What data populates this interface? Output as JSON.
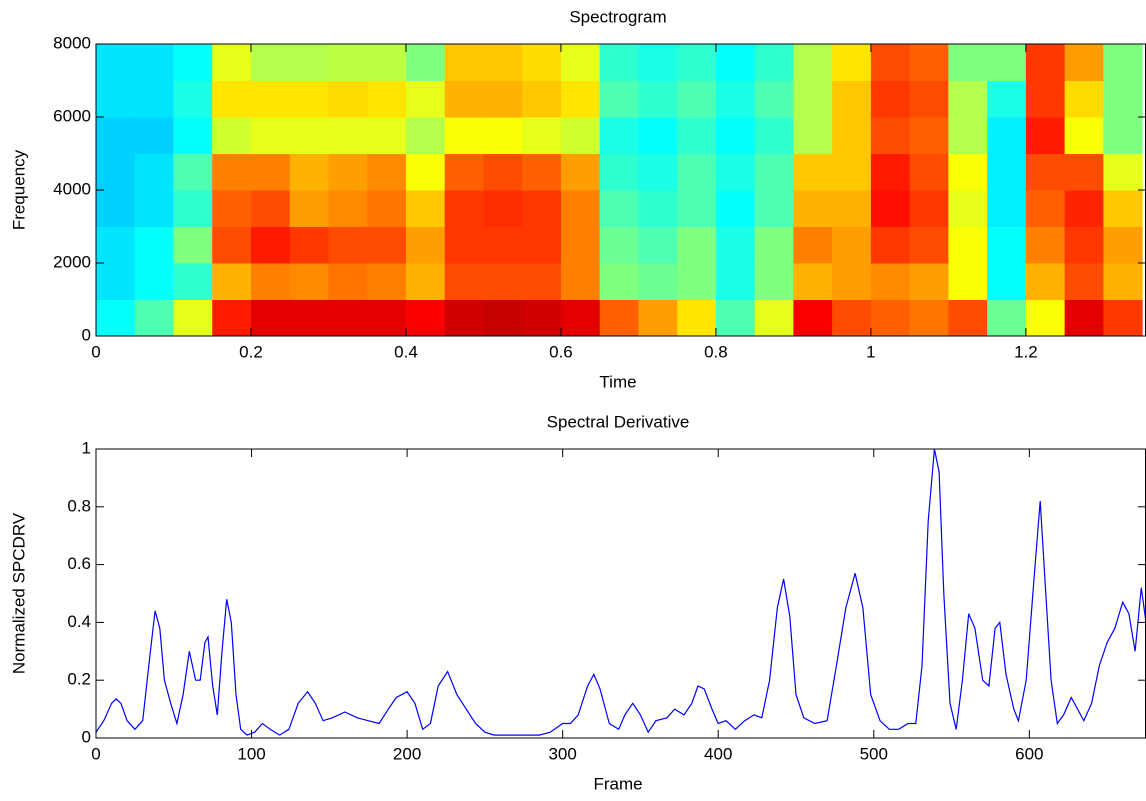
{
  "chart_data": [
    {
      "type": "heatmap",
      "title": "Spectrogram",
      "xlabel": "Time",
      "ylabel": "Frequency",
      "colormap": "jet",
      "xlim": [
        0,
        1.355
      ],
      "ylim": [
        0,
        8000
      ],
      "xticks": [
        0,
        0.2,
        0.4,
        0.6,
        0.8,
        1,
        1.2
      ],
      "yticks": [
        0,
        2000,
        4000,
        6000,
        8000
      ],
      "xbins": [
        0,
        0.05,
        0.1,
        0.15,
        0.2,
        0.25,
        0.3,
        0.35,
        0.4,
        0.45,
        0.5,
        0.55,
        0.6,
        0.65,
        0.7,
        0.75,
        0.8,
        0.85,
        0.9,
        0.95,
        1,
        1.05,
        1.1,
        1.15,
        1.2,
        1.25,
        1.3,
        1.35
      ],
      "ybins": [
        0,
        1000,
        2000,
        3000,
        4000,
        5000,
        6000,
        7000,
        8000
      ],
      "z": [
        [
          0.38,
          0.35,
          0.35,
          0.33,
          0.33,
          0.33,
          0.35,
          0.35
        ],
        [
          0.45,
          0.38,
          0.38,
          0.35,
          0.35,
          0.33,
          0.35,
          0.35
        ],
        [
          0.6,
          0.42,
          0.5,
          0.42,
          0.45,
          0.38,
          0.4,
          0.38
        ],
        [
          0.85,
          0.7,
          0.8,
          0.78,
          0.75,
          0.58,
          0.65,
          0.6
        ],
        [
          0.9,
          0.75,
          0.85,
          0.8,
          0.75,
          0.6,
          0.65,
          0.55
        ],
        [
          0.9,
          0.74,
          0.82,
          0.72,
          0.7,
          0.6,
          0.65,
          0.55
        ],
        [
          0.9,
          0.76,
          0.8,
          0.74,
          0.72,
          0.6,
          0.66,
          0.56
        ],
        [
          0.9,
          0.75,
          0.8,
          0.76,
          0.74,
          0.6,
          0.65,
          0.56
        ],
        [
          0.88,
          0.7,
          0.72,
          0.68,
          0.62,
          0.55,
          0.6,
          0.5
        ],
        [
          0.92,
          0.8,
          0.82,
          0.82,
          0.78,
          0.62,
          0.7,
          0.68
        ],
        [
          0.93,
          0.8,
          0.82,
          0.83,
          0.8,
          0.62,
          0.7,
          0.68
        ],
        [
          0.92,
          0.8,
          0.82,
          0.82,
          0.78,
          0.6,
          0.68,
          0.66
        ],
        [
          0.9,
          0.75,
          0.75,
          0.75,
          0.72,
          0.58,
          0.65,
          0.6
        ],
        [
          0.78,
          0.5,
          0.48,
          0.45,
          0.42,
          0.4,
          0.45,
          0.42
        ],
        [
          0.72,
          0.48,
          0.45,
          0.42,
          0.4,
          0.38,
          0.42,
          0.4
        ],
        [
          0.65,
          0.5,
          0.5,
          0.45,
          0.45,
          0.42,
          0.45,
          0.42
        ],
        [
          0.45,
          0.4,
          0.4,
          0.38,
          0.4,
          0.38,
          0.4,
          0.38
        ],
        [
          0.6,
          0.5,
          0.5,
          0.45,
          0.45,
          0.42,
          0.45,
          0.42
        ],
        [
          0.88,
          0.7,
          0.75,
          0.7,
          0.68,
          0.55,
          0.55,
          0.55
        ],
        [
          0.8,
          0.72,
          0.72,
          0.7,
          0.68,
          0.68,
          0.68,
          0.65
        ],
        [
          0.78,
          0.74,
          0.82,
          0.86,
          0.85,
          0.8,
          0.82,
          0.8
        ],
        [
          0.76,
          0.72,
          0.8,
          0.82,
          0.8,
          0.78,
          0.8,
          0.78
        ],
        [
          0.8,
          0.62,
          0.62,
          0.6,
          0.62,
          0.55,
          0.55,
          0.5
        ],
        [
          0.48,
          0.38,
          0.38,
          0.36,
          0.36,
          0.36,
          0.4,
          0.5
        ],
        [
          0.62,
          0.7,
          0.75,
          0.78,
          0.8,
          0.85,
          0.82,
          0.82
        ],
        [
          0.9,
          0.8,
          0.82,
          0.84,
          0.8,
          0.62,
          0.66,
          0.72
        ],
        [
          0.82,
          0.7,
          0.72,
          0.68,
          0.6,
          0.5,
          0.5,
          0.5
        ]
      ]
    },
    {
      "type": "line",
      "title": "Spectral Derivative",
      "xlabel": "Frame",
      "ylabel": "Normalized SPCDRV",
      "xlim": [
        0,
        675
      ],
      "ylim": [
        0,
        1
      ],
      "xticks": [
        0,
        100,
        200,
        300,
        400,
        500,
        600
      ],
      "yticks": [
        0,
        0.2,
        0.4,
        0.6,
        0.8,
        1
      ],
      "x": [
        0,
        5,
        10,
        13,
        16,
        20,
        25,
        30,
        35,
        38,
        41,
        44,
        48,
        52,
        56,
        60,
        64,
        67,
        70,
        72,
        75,
        78,
        81,
        84,
        87,
        90,
        93,
        97,
        102,
        107,
        112,
        118,
        124,
        130,
        136,
        141,
        146,
        152,
        160,
        168,
        175,
        182,
        188,
        193,
        200,
        205,
        210,
        215,
        220,
        226,
        232,
        238,
        244,
        250,
        256,
        265,
        275,
        285,
        292,
        300,
        305,
        310,
        316,
        320,
        324,
        330,
        336,
        340,
        345,
        350,
        355,
        360,
        367,
        372,
        378,
        383,
        387,
        391,
        396,
        400,
        405,
        411,
        417,
        423,
        428,
        433,
        438,
        442,
        446,
        450,
        455,
        462,
        470,
        476,
        482,
        488,
        493,
        498,
        504,
        510,
        516,
        522,
        527,
        531,
        535,
        539,
        542,
        545,
        549,
        553,
        557,
        561,
        565,
        570,
        574,
        578,
        581,
        585,
        590,
        593,
        598,
        603,
        607,
        610,
        614,
        618,
        622,
        627,
        631,
        635,
        640,
        645,
        650,
        655,
        660,
        664,
        668,
        672,
        675
      ],
      "series": [
        {
          "color": "#0000ff",
          "values": [
            0.02,
            0.06,
            0.12,
            0.135,
            0.12,
            0.06,
            0.03,
            0.06,
            0.3,
            0.44,
            0.38,
            0.2,
            0.12,
            0.05,
            0.15,
            0.3,
            0.2,
            0.2,
            0.33,
            0.35,
            0.18,
            0.08,
            0.3,
            0.48,
            0.4,
            0.15,
            0.03,
            0.01,
            0.02,
            0.05,
            0.03,
            0.01,
            0.03,
            0.12,
            0.16,
            0.12,
            0.06,
            0.07,
            0.09,
            0.07,
            0.06,
            0.05,
            0.1,
            0.14,
            0.16,
            0.12,
            0.03,
            0.05,
            0.18,
            0.23,
            0.15,
            0.1,
            0.05,
            0.02,
            0.01,
            0.01,
            0.01,
            0.01,
            0.02,
            0.05,
            0.05,
            0.08,
            0.18,
            0.22,
            0.17,
            0.05,
            0.03,
            0.08,
            0.12,
            0.08,
            0.02,
            0.06,
            0.07,
            0.1,
            0.08,
            0.12,
            0.18,
            0.17,
            0.1,
            0.05,
            0.06,
            0.03,
            0.06,
            0.08,
            0.07,
            0.2,
            0.45,
            0.55,
            0.42,
            0.15,
            0.07,
            0.05,
            0.06,
            0.25,
            0.45,
            0.57,
            0.45,
            0.15,
            0.06,
            0.03,
            0.03,
            0.05,
            0.05,
            0.25,
            0.75,
            1.0,
            0.92,
            0.5,
            0.12,
            0.03,
            0.2,
            0.43,
            0.38,
            0.2,
            0.18,
            0.38,
            0.4,
            0.22,
            0.1,
            0.06,
            0.2,
            0.55,
            0.82,
            0.55,
            0.2,
            0.05,
            0.08,
            0.14,
            0.1,
            0.06,
            0.12,
            0.25,
            0.33,
            0.38,
            0.47,
            0.43,
            0.3,
            0.52,
            0.4
          ]
        }
      ]
    }
  ]
}
